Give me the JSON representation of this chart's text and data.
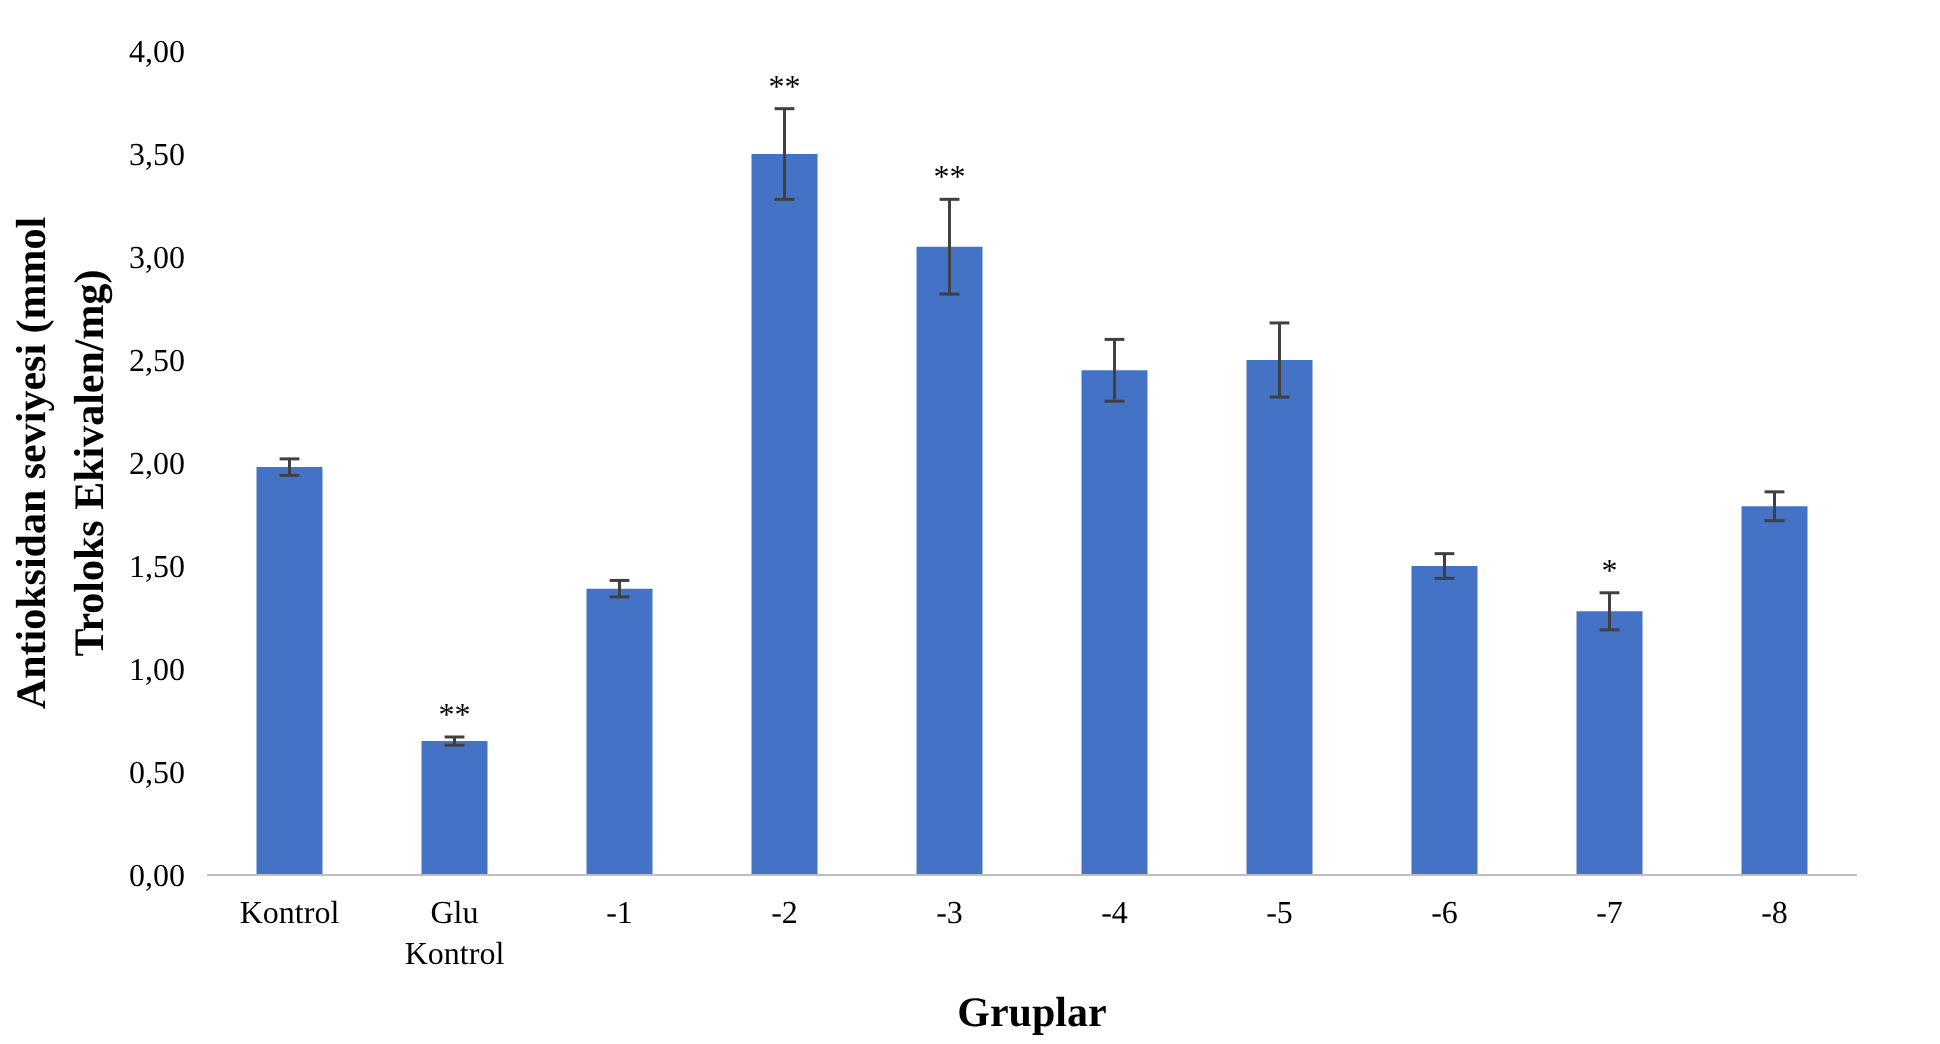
{
  "chart_data": {
    "type": "bar",
    "xlabel": "Gruplar",
    "ylabel": "Antioksidan seviyesi (mmol Troloks Ekivalen/mg)",
    "categories": [
      "Kontrol",
      "Glu Kontrol",
      "-1",
      "-2",
      "-3",
      "-4",
      "-5",
      "-6",
      "-7",
      "-8"
    ],
    "values": [
      1.98,
      0.65,
      1.39,
      3.5,
      3.05,
      2.45,
      2.5,
      1.5,
      1.28,
      1.79
    ],
    "errors": [
      0.04,
      0.02,
      0.04,
      0.22,
      0.23,
      0.15,
      0.18,
      0.06,
      0.09,
      0.07
    ],
    "color": "#4472c4",
    "ylim": [
      0,
      4
    ],
    "yticks": [
      {
        "value": 0,
        "label": "0,00"
      },
      {
        "value": 0.5,
        "label": "0,50"
      },
      {
        "value": 1,
        "label": "1,00"
      },
      {
        "value": 1.5,
        "label": "1,50"
      },
      {
        "value": 2,
        "label": "2,00"
      },
      {
        "value": 2.5,
        "label": "2,50"
      },
      {
        "value": 3,
        "label": "3,00"
      },
      {
        "value": 3.5,
        "label": "3,50"
      },
      {
        "value": 4,
        "label": "4,00"
      }
    ],
    "grid": false,
    "annotations": [
      {
        "text": "**",
        "x": "Glu Kontrol",
        "y": 0.67
      },
      {
        "text": "**",
        "x": "-2",
        "y": 3.72
      },
      {
        "text": "**",
        "x": "-3",
        "y": 3.28
      },
      {
        "text": "*",
        "x": "-7",
        "y": 1.37
      }
    ]
  }
}
